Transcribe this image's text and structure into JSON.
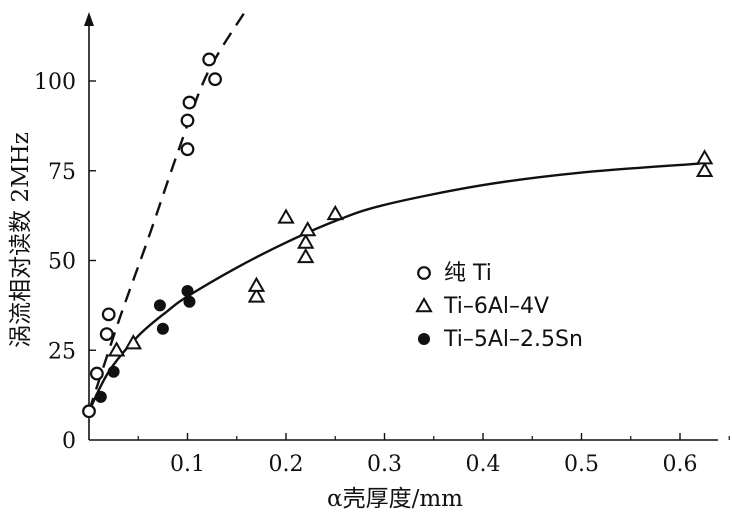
{
  "chart_data": {
    "type": "scatter",
    "xlabel": "α壳厚度/mm",
    "ylabel": "涡流相对读数 2MHz",
    "xlim": [
      0,
      0.65
    ],
    "ylim": [
      0,
      120
    ],
    "x_ticks": [
      0.1,
      0.2,
      0.3,
      0.4,
      0.5,
      0.6
    ],
    "x_tick_labels": [
      "0.1",
      "0.2",
      "0.3",
      "0.4",
      "0.5",
      "0.6"
    ],
    "y_ticks": [
      0,
      25,
      50,
      75,
      100
    ],
    "y_tick_labels": [
      "0",
      "25",
      "50",
      "75",
      "100"
    ],
    "legend_position": "center-right",
    "series": [
      {
        "name": "纯 Ti",
        "marker": "open-circle",
        "points": [
          [
            0.0,
            8
          ],
          [
            0.008,
            18.5
          ],
          [
            0.018,
            29.5
          ],
          [
            0.02,
            35
          ],
          [
            0.1,
            81
          ],
          [
            0.1,
            89
          ],
          [
            0.102,
            94
          ],
          [
            0.122,
            106
          ],
          [
            0.128,
            100.5
          ]
        ]
      },
      {
        "name": "Ti–6Al–4V",
        "marker": "open-triangle",
        "points": [
          [
            0.028,
            25
          ],
          [
            0.045,
            27
          ],
          [
            0.17,
            40
          ],
          [
            0.17,
            43
          ],
          [
            0.2,
            62
          ],
          [
            0.22,
            51
          ],
          [
            0.22,
            55
          ],
          [
            0.222,
            58.5
          ],
          [
            0.25,
            63
          ],
          [
            0.625,
            75
          ],
          [
            0.625,
            78.5
          ]
        ]
      },
      {
        "name": "Ti–5Al–2.5Sn",
        "marker": "filled-circle",
        "points": [
          [
            0.012,
            12
          ],
          [
            0.025,
            19
          ],
          [
            0.072,
            37.5
          ],
          [
            0.075,
            31
          ],
          [
            0.1,
            41.5
          ],
          [
            0.102,
            38.5
          ]
        ]
      }
    ],
    "curves": [
      {
        "style": "dashed",
        "points": [
          [
            0.0,
            8
          ],
          [
            0.03,
            33
          ],
          [
            0.06,
            56
          ],
          [
            0.09,
            80
          ],
          [
            0.12,
            102
          ],
          [
            0.16,
            120
          ]
        ]
      },
      {
        "style": "solid",
        "points": [
          [
            0.0,
            8
          ],
          [
            0.02,
            19
          ],
          [
            0.05,
            29
          ],
          [
            0.08,
            36
          ],
          [
            0.1,
            40
          ],
          [
            0.15,
            48
          ],
          [
            0.2,
            55
          ],
          [
            0.25,
            61
          ],
          [
            0.3,
            65.5
          ],
          [
            0.4,
            71
          ],
          [
            0.5,
            74.5
          ],
          [
            0.62,
            77
          ]
        ]
      }
    ]
  }
}
